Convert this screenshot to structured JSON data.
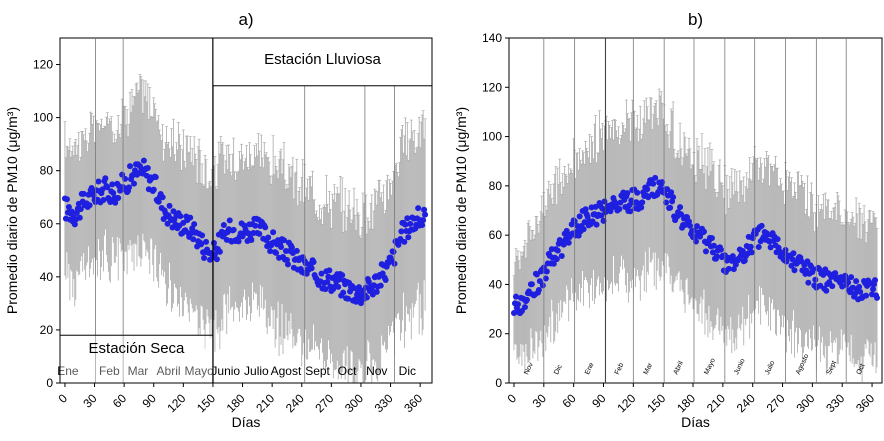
{
  "chart_data": [
    {
      "type": "scatter",
      "panel_label": "a)",
      "xlabel": "Días",
      "ylabel": "Promedio diario de PM10 (μg/m³)",
      "xlim": [
        -5,
        372
      ],
      "ylim": [
        0,
        130
      ],
      "xticks": [
        0,
        30,
        60,
        90,
        120,
        150,
        180,
        210,
        240,
        270,
        300,
        330,
        360
      ],
      "yticks": [
        0,
        20,
        40,
        60,
        80,
        100,
        120
      ],
      "month_boundaries": [
        31,
        59,
        150,
        243,
        304,
        334
      ],
      "months": [
        {
          "label": "Ene",
          "x": 3
        },
        {
          "label": "Feb",
          "x": 45
        },
        {
          "label": "Mar",
          "x": 74
        },
        {
          "label": "Abril",
          "x": 105
        },
        {
          "label": "Mayo",
          "x": 136
        },
        {
          "label": "Junio",
          "x": 163
        },
        {
          "label": "Julio",
          "x": 194
        },
        {
          "label": "Agost",
          "x": 224
        },
        {
          "label": "Sept",
          "x": 256
        },
        {
          "label": "Oct",
          "x": 286
        },
        {
          "label": "Nov",
          "x": 316
        },
        {
          "label": "Dic",
          "x": 347
        }
      ],
      "season_labels": {
        "dry": "Estación Seca",
        "wet": "Estación Lluviosa"
      },
      "season_split_x": 150,
      "dry_box_top_y": 18,
      "wet_box_bottom_y": 112,
      "series": [
        {
          "color": "#1f1fe0",
          "errorbar_color": "#a8a8a8",
          "x": [
            0,
            10,
            20,
            30,
            40,
            50,
            60,
            70,
            80,
            90,
            100,
            110,
            120,
            130,
            140,
            150,
            160,
            170,
            180,
            190,
            200,
            210,
            220,
            230,
            240,
            250,
            260,
            270,
            280,
            290,
            300,
            310,
            320,
            330,
            340,
            350,
            360
          ],
          "y": [
            66,
            64,
            68,
            71,
            73,
            72,
            75,
            79,
            80,
            75,
            66,
            62,
            60,
            58,
            52,
            48,
            55,
            58,
            57,
            58,
            57,
            53,
            50,
            48,
            44,
            42,
            40,
            39,
            37,
            35,
            34,
            36,
            40,
            45,
            55,
            60,
            62
          ],
          "err": [
            24,
            26,
            25,
            24,
            24,
            25,
            26,
            28,
            30,
            28,
            27,
            28,
            29,
            30,
            30,
            30,
            30,
            29,
            28,
            29,
            29,
            30,
            30,
            29,
            30,
            30,
            30,
            30,
            30,
            31,
            30,
            30,
            30,
            30,
            32,
            33,
            34
          ]
        }
      ]
    },
    {
      "type": "scatter",
      "panel_label": "b)",
      "xlabel": "Días",
      "ylabel": "Promedio diario de PM10 (μg/m³)",
      "xlim": [
        -5,
        370
      ],
      "ylim": [
        0,
        140
      ],
      "xticks": [
        0,
        30,
        60,
        90,
        120,
        150,
        180,
        210,
        240,
        270,
        300,
        330,
        360
      ],
      "yticks": [
        0,
        20,
        40,
        60,
        80,
        100,
        120,
        140
      ],
      "month_boundaries": [
        30,
        61,
        92,
        120,
        151,
        181,
        212,
        242,
        273,
        304,
        334
      ],
      "months": [
        {
          "label": "Nov",
          "x": 14
        },
        {
          "label": "Dic",
          "x": 44
        },
        {
          "label": "Ene",
          "x": 75
        },
        {
          "label": "Feb",
          "x": 105
        },
        {
          "label": "Mar",
          "x": 134
        },
        {
          "label": "Abril",
          "x": 164
        },
        {
          "label": "Mayo",
          "x": 195
        },
        {
          "label": "Junio",
          "x": 225
        },
        {
          "label": "Julio",
          "x": 256
        },
        {
          "label": "Agosto",
          "x": 287
        },
        {
          "label": "Sept",
          "x": 318
        },
        {
          "label": "Oct",
          "x": 348
        }
      ],
      "solid_boundaries": [
        92,
        243
      ],
      "series": [
        {
          "color": "#1f1fe0",
          "errorbar_color": "#a8a8a8",
          "x": [
            0,
            10,
            20,
            30,
            40,
            50,
            60,
            70,
            80,
            90,
            100,
            110,
            120,
            130,
            140,
            150,
            160,
            170,
            180,
            190,
            200,
            210,
            220,
            230,
            240,
            250,
            260,
            270,
            280,
            290,
            300,
            310,
            320,
            330,
            340,
            350,
            360
          ],
          "y": [
            30,
            34,
            39,
            44,
            52,
            57,
            62,
            66,
            68,
            70,
            72,
            74,
            74,
            76,
            79,
            78,
            72,
            65,
            60,
            58,
            55,
            50,
            48,
            52,
            58,
            60,
            57,
            53,
            50,
            47,
            44,
            42,
            41,
            40,
            39,
            38,
            39
          ],
          "err": [
            20,
            22,
            24,
            26,
            27,
            28,
            28,
            29,
            30,
            30,
            31,
            31,
            32,
            32,
            32,
            32,
            31,
            30,
            30,
            31,
            31,
            30,
            30,
            30,
            30,
            30,
            30,
            30,
            30,
            29,
            29,
            29,
            28,
            28,
            28,
            28,
            28
          ]
        }
      ]
    }
  ]
}
